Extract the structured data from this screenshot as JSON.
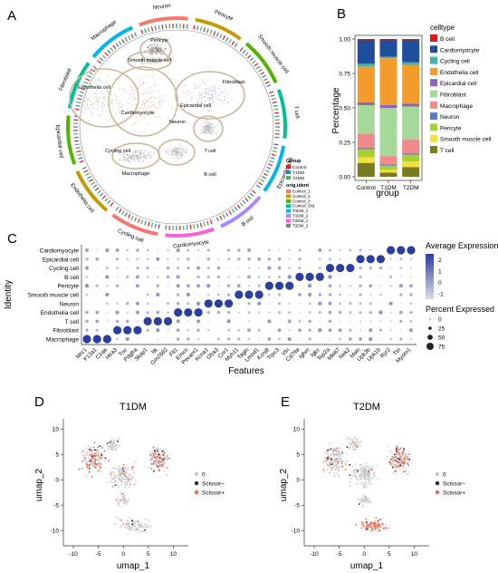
{
  "panel_labels": {
    "a": "A",
    "b": "B",
    "c": "C",
    "d": "D",
    "e": "E"
  },
  "colors": {
    "Control": "#e41a1c",
    "T1DM": "#377eb8",
    "T2DM": "#4daf4a",
    "dot_low": "#d9dde8",
    "dot_high": "#2a3f9e",
    "scissor_minus": "#1c1c3c",
    "scissor_plus": "#ef6548",
    "neutral": "#c8c8c8"
  },
  "chart_data": [
    {
      "id": "A",
      "type": "circos",
      "sectors": [
        "Neuron",
        "Pericyte",
        "Smooth muscle cell",
        "T cell",
        "Epicardial cell",
        "B cell",
        "Cardiomyocyte",
        "Cycling cell",
        "Endothelia cell",
        "Epicardial cell",
        "Fibroblast",
        "Macrophage"
      ],
      "cluster_labels": [
        "Pericyte",
        "Smooth muscle cell",
        "Endothelia cell",
        "Fibroblast",
        "Cardiomyocyte",
        "Epicardial cell",
        "Neuron",
        "Cycling cell",
        "Macrophage",
        "T cell",
        "B cell"
      ],
      "legend_group_title": "Group",
      "legend_group": [
        "Control",
        "T1DM",
        "T2DM"
      ],
      "legend_ident_title": "orig.ident",
      "legend_ident": [
        "Control_1",
        "Control_2",
        "Control_3",
        "Control_Old",
        "T1DM_1",
        "T1DM_2",
        "T2DM_1",
        "T2DM_2"
      ],
      "legend_ident_colors": [
        "#f8766d",
        "#c49a00",
        "#53b400",
        "#00c094",
        "#00b6eb",
        "#a58aff",
        "#fb61d7",
        "#7f7f7f"
      ]
    },
    {
      "id": "B",
      "type": "bar",
      "stacked": true,
      "title": "",
      "xlabel": "group",
      "ylabel": "Percentage",
      "categories": [
        "Control",
        "T1DM",
        "T2DM"
      ],
      "ylim": [
        0,
        1
      ],
      "yticks": [
        "0.00",
        "0.25",
        "0.50",
        "0.75",
        "1.00"
      ],
      "legend_title": "celltype",
      "series": [
        {
          "name": "B cell",
          "color": "#d7191c",
          "values": [
            0.01,
            0.01,
            0.01
          ]
        },
        {
          "name": "Cardiomyocyte",
          "color": "#1f4e9c",
          "values": [
            0.17,
            0.12,
            0.16
          ]
        },
        {
          "name": "Cycling cell",
          "color": "#3fb6a8",
          "values": [
            0.02,
            0.01,
            0.02
          ]
        },
        {
          "name": "Endothelia cell",
          "color": "#f39c2b",
          "values": [
            0.26,
            0.34,
            0.28
          ]
        },
        {
          "name": "Epicardial cell",
          "color": "#8a68b8",
          "values": [
            0.02,
            0.02,
            0.02
          ]
        },
        {
          "name": "Fibroblast",
          "color": "#a6d89a",
          "values": [
            0.21,
            0.35,
            0.24
          ]
        },
        {
          "name": "Macrophage",
          "color": "#ef8b8b",
          "values": [
            0.1,
            0.06,
            0.1
          ]
        },
        {
          "name": "Neuron",
          "color": "#5b7fc4",
          "values": [
            0.01,
            0.01,
            0.01
          ]
        },
        {
          "name": "Pericyte",
          "color": "#a8d032",
          "values": [
            0.06,
            0.03,
            0.05
          ]
        },
        {
          "name": "Smooth muscle cell",
          "color": "#f3e03a",
          "values": [
            0.04,
            0.02,
            0.04
          ]
        },
        {
          "name": "T cell",
          "color": "#7a7a1e",
          "values": [
            0.1,
            0.03,
            0.07
          ]
        }
      ]
    },
    {
      "id": "C",
      "type": "dot",
      "xlabel": "Features",
      "ylabel": "Identity",
      "identities": [
        "Cardiomyocyte",
        "Epicardial cell",
        "Cycling cell",
        "B cell",
        "Pericyte",
        "Smooth muscle cell",
        "Neuron",
        "Endothelia cell",
        "T cell",
        "Fibroblast",
        "Macrophage"
      ],
      "features": [
        "Mrc1",
        "F13a1",
        "C1qa",
        "Htra3",
        "Tnc",
        "Pdgfra",
        "Skap1",
        "Itk",
        "Gm2682",
        "Flt1",
        "Emcn",
        "Pecam1",
        "Kcna1",
        "Gfra3",
        "Cnr1",
        "Myh11",
        "Tagln",
        "Lmod1",
        "Kcnj8",
        "Trpc3",
        "Vtn",
        "Cd79a",
        "Ighm",
        "Igkc",
        "Top2a",
        "Mki67",
        "Nek2",
        "Msln",
        "Upk3b",
        "Upk1b",
        "Ryr2",
        "Ttn",
        "Myom1"
      ],
      "color_scale_title": "Average Expression",
      "color_ticks": [
        "2",
        "1",
        "0",
        "-1"
      ],
      "color_range": [
        -1.5,
        2.5
      ],
      "size_legend_title": "Percent Expressed",
      "size_ticks": [
        "0",
        "25",
        "50",
        "75"
      ],
      "high_expression": [
        [
          "Macrophage",
          "Mrc1"
        ],
        [
          "Macrophage",
          "F13a1"
        ],
        [
          "Macrophage",
          "C1qa"
        ],
        [
          "Fibroblast",
          "Htra3"
        ],
        [
          "Fibroblast",
          "Tnc"
        ],
        [
          "Fibroblast",
          "Pdgfra"
        ],
        [
          "T cell",
          "Skap1"
        ],
        [
          "T cell",
          "Itk"
        ],
        [
          "T cell",
          "Gm2682"
        ],
        [
          "Endothelia cell",
          "Flt1"
        ],
        [
          "Endothelia cell",
          "Emcn"
        ],
        [
          "Endothelia cell",
          "Pecam1"
        ],
        [
          "Neuron",
          "Kcna1"
        ],
        [
          "Neuron",
          "Gfra3"
        ],
        [
          "Neuron",
          "Cnr1"
        ],
        [
          "Smooth muscle cell",
          "Myh11"
        ],
        [
          "Smooth muscle cell",
          "Tagln"
        ],
        [
          "Smooth muscle cell",
          "Lmod1"
        ],
        [
          "Pericyte",
          "Kcnj8"
        ],
        [
          "Pericyte",
          "Trpc3"
        ],
        [
          "Pericyte",
          "Vtn"
        ],
        [
          "B cell",
          "Cd79a"
        ],
        [
          "B cell",
          "Ighm"
        ],
        [
          "B cell",
          "Igkc"
        ],
        [
          "Cycling cell",
          "Top2a"
        ],
        [
          "Cycling cell",
          "Mki67"
        ],
        [
          "Cycling cell",
          "Nek2"
        ],
        [
          "Epicardial cell",
          "Msln"
        ],
        [
          "Epicardial cell",
          "Upk3b"
        ],
        [
          "Epicardial cell",
          "Upk1b"
        ],
        [
          "Cardiomyocyte",
          "Ryr2"
        ],
        [
          "Cardiomyocyte",
          "Ttn"
        ],
        [
          "Cardiomyocyte",
          "Myom1"
        ]
      ]
    },
    {
      "id": "D",
      "type": "scatter",
      "title": "T1DM",
      "xlabel": "umap_1",
      "ylabel": "umap_2",
      "xlim": [
        -12,
        13
      ],
      "ylim": [
        -13,
        12
      ],
      "xticks": [
        "-10",
        "-5",
        "0",
        "5",
        "10"
      ],
      "yticks": [
        "10",
        "5",
        "0",
        "-5",
        "-10"
      ],
      "legend": [
        "0",
        "Scissor−",
        "Scissor+"
      ]
    },
    {
      "id": "E",
      "type": "scatter",
      "title": "T2DM",
      "xlabel": "umap_1",
      "ylabel": "umap_2",
      "xlim": [
        -12,
        13
      ],
      "ylim": [
        -13,
        12
      ],
      "xticks": [
        "-10",
        "-5",
        "0",
        "5",
        "10"
      ],
      "yticks": [
        "10",
        "5",
        "0",
        "-5",
        "-10"
      ],
      "legend": [
        "0",
        "Scissor−",
        "Scissor+"
      ]
    }
  ]
}
